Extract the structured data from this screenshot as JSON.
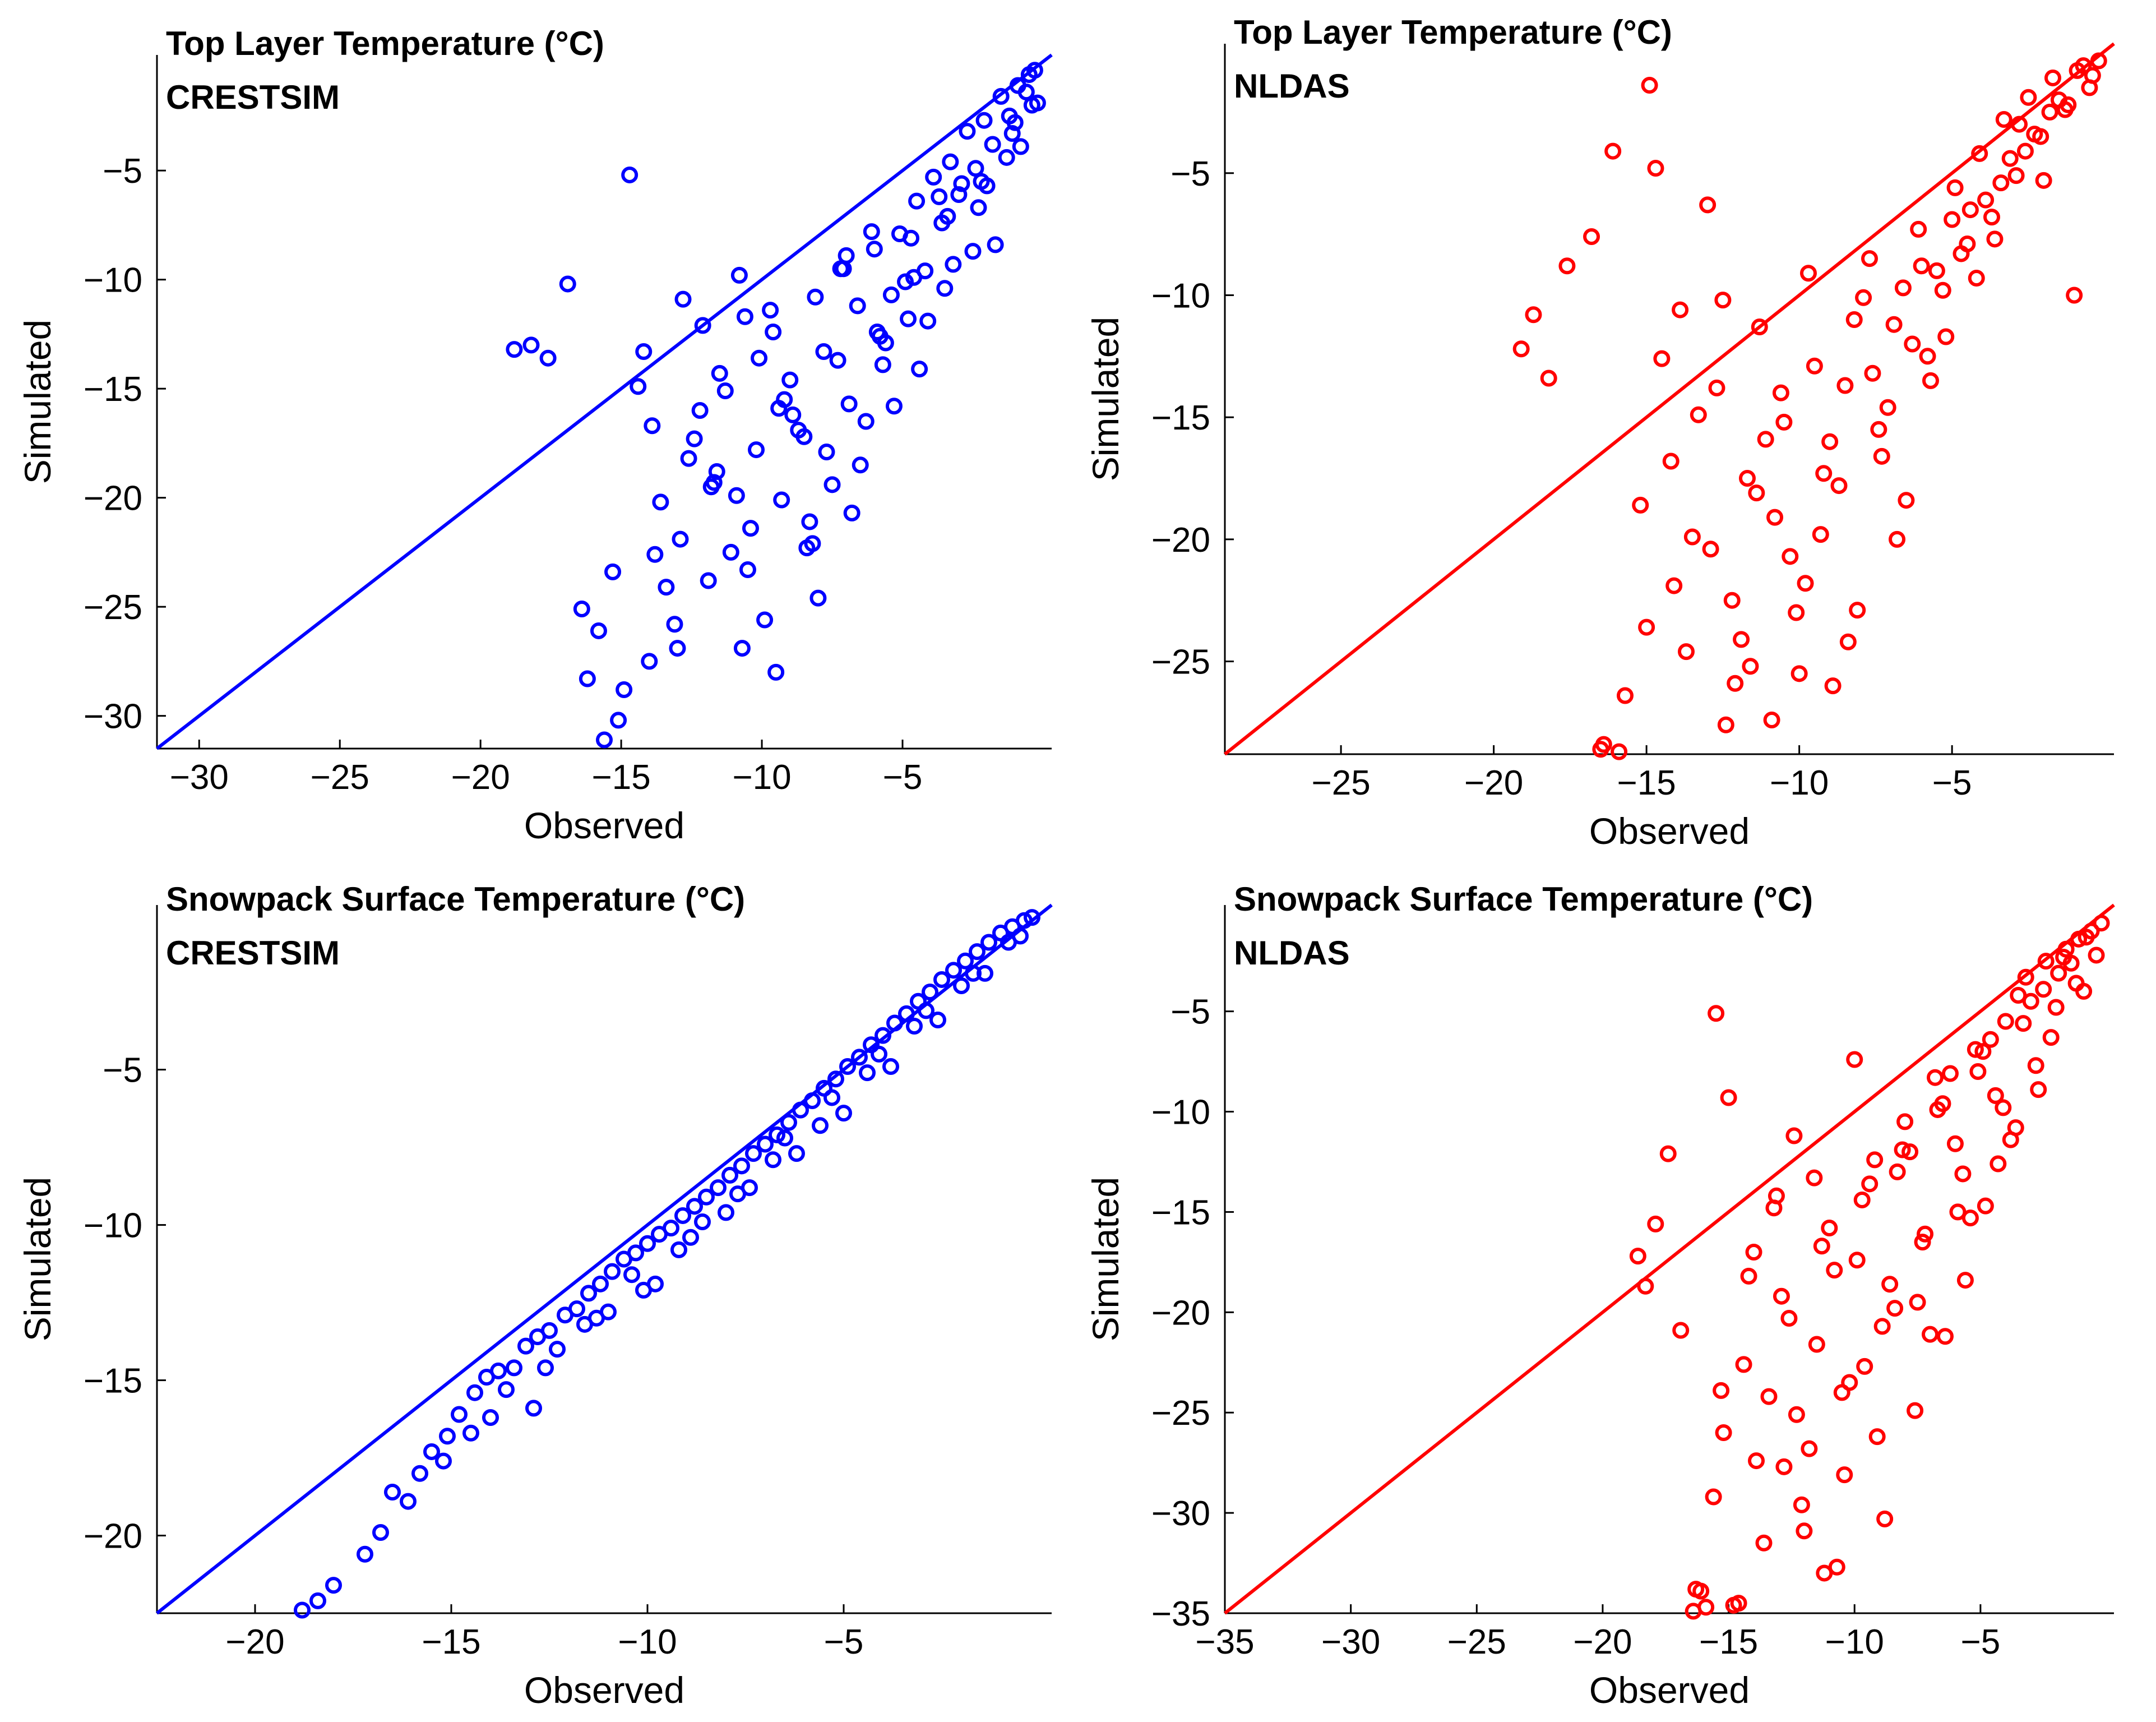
{
  "figure": {
    "background": "#ffffff",
    "marker": "circle"
  },
  "chart_data": [
    {
      "type": "scatter",
      "panel": "top-left",
      "title": "Top Layer Temperature (°C)",
      "subtitle": "CRESTSIM",
      "xlabel": "Observed",
      "ylabel": "Simulated",
      "color": "#0000ff",
      "xlim": [
        -31.5,
        0.3
      ],
      "ylim": [
        -31.5,
        0.3
      ],
      "xticks": [
        -30,
        -25,
        -20,
        -15,
        -10,
        -5
      ],
      "yticks": [
        -30,
        -25,
        -20,
        -15,
        -10,
        -5
      ],
      "reference_line": "1:1",
      "grid": false,
      "x": [
        -18.8,
        -18.2,
        -17.6,
        -16.9,
        -16.4,
        -15.8,
        -15.1,
        -14.7,
        -14.2,
        -13.8,
        -13.4,
        -13.0,
        -12.6,
        -12.2,
        -11.8,
        -11.5,
        -11.1,
        -10.8,
        -10.5,
        -10.2,
        -9.9,
        -9.6,
        -9.3,
        -9.0,
        -8.7,
        -8.4,
        -8.1,
        -7.8,
        -7.5,
        -7.2,
        -6.9,
        -6.6,
        -6.3,
        -6.0,
        -5.7,
        -5.4,
        -5.1,
        -4.8,
        -4.5,
        -4.2,
        -3.9,
        -3.6,
        -3.3,
        -3.0,
        -2.7,
        -2.4,
        -2.1,
        -1.8,
        -1.5,
        -1.2,
        -0.9,
        -0.6,
        -0.3,
        -16.2,
        -15.6,
        -14.9,
        -14.4,
        -13.6,
        -13.1,
        -12.4,
        -11.9,
        -11.3,
        -10.7,
        -10.1,
        -9.5,
        -8.9,
        -8.3,
        -7.7,
        -7.1,
        -6.5,
        -5.9,
        -5.3,
        -4.7,
        -4.1,
        -3.5,
        -2.9,
        -2.3,
        -1.7,
        -1.1,
        -0.5,
        -12.8,
        -11.6,
        -10.4,
        -9.2,
        -8.0,
        -6.8,
        -5.6,
        -4.4,
        -3.2,
        -2.0,
        -0.8,
        -13.9,
        -12.1,
        -10.9,
        -9.7,
        -8.5,
        -7.3,
        -6.1,
        -4.9,
        -3.7,
        -2.5,
        -1.3,
        -0.4,
        -15.3,
        -14.0,
        -12.9,
        -11.7,
        -10.6,
        -9.4,
        -8.2,
        -7.0,
        -5.8,
        -4.6,
        -3.4,
        -2.2,
        -1.0,
        -0.2
      ],
      "y": [
        -13.2,
        -13.0,
        -13.6,
        -10.2,
        -25.1,
        -26.1,
        -30.2,
        -5.2,
        -13.3,
        -22.6,
        -24.1,
        -26.9,
        -18.2,
        -16.0,
        -19.5,
        -14.3,
        -22.5,
        -9.8,
        -23.3,
        -17.8,
        -25.6,
        -12.4,
        -20.1,
        -14.6,
        -16.9,
        -22.3,
        -10.8,
        -13.3,
        -19.4,
        -9.5,
        -15.7,
        -11.2,
        -16.5,
        -8.6,
        -13.9,
        -10.7,
        -7.9,
        -11.8,
        -6.4,
        -9.6,
        -5.3,
        -7.4,
        -4.6,
        -6.1,
        -3.2,
        -4.9,
        -2.7,
        -3.8,
        -1.6,
        -2.5,
        -1.1,
        -1.4,
        -0.4,
        -28.3,
        -31.1,
        -28.8,
        -14.9,
        -20.2,
        -25.8,
        -17.3,
        -23.8,
        -15.1,
        -26.9,
        -13.6,
        -28.0,
        -16.2,
        -21.1,
        -17.9,
        -9.5,
        -18.5,
        -12.4,
        -15.8,
        -8.1,
        -11.9,
        -10.4,
        -5.6,
        -6.7,
        -8.4,
        -3.3,
        -0.6,
        -10.9,
        -18.8,
        -21.4,
        -15.5,
        -24.6,
        -20.7,
        -12.9,
        -14.1,
        -9.3,
        -5.7,
        -3.9,
        -16.7,
        -12.1,
        -19.9,
        -11.4,
        -17.2,
        -13.7,
        -7.8,
        -10.1,
        -6.2,
        -8.7,
        -4.4,
        -2.0,
        -23.4,
        -27.5,
        -21.9,
        -19.3,
        -11.7,
        -15.9,
        -22.1,
        -8.9,
        -12.6,
        -9.9,
        -7.1,
        -5.5,
        -2.8,
        -1.9
      ],
      "x_obs_note": "approximate"
    },
    {
      "type": "scatter",
      "panel": "top-right",
      "title": "Top Layer Temperature (°C)",
      "subtitle": "NLDAS",
      "xlabel": "Observed",
      "ylabel": "Simulated",
      "color": "#ff0000",
      "xlim": [
        -28.8,
        0.3
      ],
      "ylim": [
        -28.8,
        0.3
      ],
      "xticks": [
        -25,
        -20,
        -15,
        -10,
        -5
      ],
      "yticks": [
        -25,
        -20,
        -15,
        -10,
        -5
      ],
      "reference_line": "1:1",
      "grid": false,
      "x": [
        -19.1,
        -18.7,
        -18.2,
        -17.6,
        -16.8,
        -16.4,
        -16.1,
        -15.7,
        -15.2,
        -14.9,
        -14.5,
        -14.1,
        -13.7,
        -13.3,
        -12.9,
        -12.5,
        -12.1,
        -11.7,
        -11.3,
        -10.9,
        -10.5,
        -10.1,
        -9.7,
        -9.3,
        -8.9,
        -8.5,
        -8.1,
        -7.7,
        -7.3,
        -6.9,
        -6.5,
        -6.1,
        -5.7,
        -5.3,
        -4.9,
        -4.5,
        -4.1,
        -3.7,
        -3.3,
        -2.9,
        -2.5,
        -2.1,
        -1.7,
        -1.3,
        -0.9,
        -0.5,
        -0.2,
        -15.9,
        -15.0,
        -14.2,
        -13.5,
        -12.7,
        -11.9,
        -11.1,
        -10.3,
        -9.5,
        -8.7,
        -7.9,
        -7.1,
        -6.3,
        -5.5,
        -4.7,
        -3.9,
        -3.1,
        -2.3,
        -1.5,
        -0.7,
        -16.5,
        -13.0,
        -12.2,
        -11.4,
        -10.6,
        -9.8,
        -9.0,
        -8.2,
        -7.4,
        -6.6,
        -5.8,
        -5.0,
        -4.2,
        -3.4,
        -2.6,
        -1.8,
        -1.0,
        -0.4,
        -14.7,
        -13.9,
        -12.4,
        -11.6,
        -10.8,
        -10.0,
        -9.2,
        -8.4,
        -7.6,
        -6.8,
        -6.0,
        -5.2,
        -4.4,
        -3.6,
        -2.8,
        -2.0,
        -1.2
      ],
      "y": [
        -12.2,
        -10.8,
        -13.4,
        -8.8,
        -7.6,
        -28.4,
        -4.1,
        -26.4,
        -18.6,
        -1.4,
        -12.6,
        -21.9,
        -24.6,
        -14.9,
        -20.4,
        -10.2,
        -25.9,
        -17.5,
        -11.3,
        -27.4,
        -15.2,
        -23.0,
        -9.1,
        -19.8,
        -26.0,
        -13.7,
        -22.9,
        -8.5,
        -16.6,
        -11.2,
        -18.4,
        -7.3,
        -13.5,
        -9.8,
        -5.6,
        -7.9,
        -4.2,
        -6.8,
        -2.8,
        -5.1,
        -1.9,
        -3.5,
        -1.1,
        -2.4,
        -0.8,
        -1.5,
        -0.4,
        -28.7,
        -23.6,
        -16.8,
        -19.9,
        -13.8,
        -24.1,
        -15.9,
        -20.7,
        -12.9,
        -17.8,
        -10.1,
        -14.6,
        -12.0,
        -9.0,
        -8.3,
        -6.1,
        -4.4,
        -3.4,
        -2.0,
        -0.6,
        -28.6,
        -6.3,
        -22.5,
        -18.1,
        -14.0,
        -21.8,
        -16.0,
        -11.0,
        -15.5,
        -9.7,
        -12.5,
        -6.9,
        -9.3,
        -5.4,
        -4.1,
        -2.5,
        -10.0,
        -1.0,
        -4.8,
        -10.6,
        -27.6,
        -25.2,
        -19.1,
        -25.5,
        -17.3,
        -24.2,
        -13.2,
        -20.0,
        -8.8,
        -11.7,
        -6.5,
        -7.7,
        -3.0,
        -5.3,
        -2.2
      ]
    },
    {
      "type": "scatter",
      "panel": "bottom-left",
      "title": "Snowpack Surface Temperature (°C)",
      "subtitle": "CRESTSIM",
      "xlabel": "Observed",
      "ylabel": "Simulated",
      "color": "#0000ff",
      "xlim": [
        -22.5,
        0.3
      ],
      "ylim": [
        -22.5,
        0.3
      ],
      "xticks": [
        -20,
        -15,
        -10,
        -5
      ],
      "yticks": [
        -20,
        -15,
        -10,
        -5
      ],
      "reference_line": "1:1",
      "grid": false,
      "x": [
        -18.8,
        -18.4,
        -18.0,
        -17.2,
        -16.8,
        -16.5,
        -16.1,
        -15.8,
        -15.5,
        -15.1,
        -14.8,
        -14.4,
        -14.1,
        -13.8,
        -13.4,
        -13.1,
        -12.8,
        -12.5,
        -12.1,
        -11.8,
        -11.5,
        -11.2,
        -10.9,
        -10.6,
        -10.3,
        -10.0,
        -9.7,
        -9.4,
        -9.1,
        -8.8,
        -8.5,
        -8.2,
        -7.9,
        -7.6,
        -7.3,
        -7.0,
        -6.7,
        -6.4,
        -6.1,
        -5.8,
        -5.5,
        -5.2,
        -4.9,
        -4.6,
        -4.3,
        -4.0,
        -3.7,
        -3.4,
        -3.1,
        -2.8,
        -2.5,
        -2.2,
        -1.9,
        -1.6,
        -1.3,
        -1.0,
        -0.7,
        -0.4,
        -0.2,
        -14.5,
        -13.6,
        -12.9,
        -12.3,
        -11.6,
        -11.0,
        -10.4,
        -9.8,
        -9.2,
        -8.6,
        -8.0,
        -7.4,
        -6.8,
        -6.2,
        -5.6,
        -5.0,
        -4.4,
        -3.8,
        -3.2,
        -2.6,
        -2.0,
        -1.4,
        -0.8,
        -15.2,
        -14.0,
        -12.6,
        -11.3,
        -10.1,
        -8.9,
        -7.7,
        -6.5,
        -5.3,
        -4.1,
        -2.9,
        -1.7,
        -0.5
      ],
      "y": [
        -22.4,
        -22.1,
        -21.6,
        -20.6,
        -19.9,
        -18.6,
        -18.9,
        -18.0,
        -17.3,
        -16.8,
        -16.1,
        -15.4,
        -14.9,
        -14.7,
        -14.6,
        -13.9,
        -13.6,
        -13.4,
        -12.9,
        -12.7,
        -12.2,
        -11.9,
        -11.5,
        -11.1,
        -10.9,
        -10.6,
        -10.3,
        -10.1,
        -9.7,
        -9.4,
        -9.1,
        -8.8,
        -8.4,
        -8.1,
        -7.7,
        -7.4,
        -7.1,
        -6.7,
        -6.3,
        -6.0,
        -5.6,
        -5.3,
        -4.9,
        -4.6,
        -4.2,
        -3.9,
        -3.5,
        -3.2,
        -2.8,
        -2.5,
        -2.1,
        -1.8,
        -1.5,
        -1.2,
        -0.9,
        -0.6,
        -0.4,
        -0.2,
        -0.1,
        -16.7,
        -15.3,
        -15.9,
        -14.0,
        -13.2,
        -12.8,
        -11.6,
        -11.9,
        -10.8,
        -9.9,
        -9.6,
        -8.8,
        -7.9,
        -7.7,
        -6.8,
        -6.4,
        -5.1,
        -4.9,
        -3.6,
        -3.4,
        -2.3,
        -1.9,
        -0.9,
        -17.6,
        -16.2,
        -14.6,
        -13.0,
        -12.1,
        -10.4,
        -9.0,
        -7.2,
        -5.9,
        -4.5,
        -3.1,
        -1.9,
        -0.7
      ]
    },
    {
      "type": "scatter",
      "panel": "bottom-right",
      "title": "Snowpack Surface Temperature (°C)",
      "subtitle": "NLDAS",
      "xlabel": "Observed",
      "ylabel": "Simulated",
      "color": "#ff0000",
      "xlim": [
        -35,
        0.3
      ],
      "ylim": [
        -35,
        0.3
      ],
      "xticks": [
        -35,
        -30,
        -25,
        -20,
        -15,
        -10,
        -5
      ],
      "yticks": [
        -35,
        -30,
        -25,
        -20,
        -15,
        -10,
        -5
      ],
      "reference_line": "1:1",
      "grid": false,
      "x": [
        -18.6,
        -18.3,
        -17.9,
        -17.4,
        -16.9,
        -16.3,
        -15.9,
        -15.5,
        -15.2,
        -14.8,
        -14.4,
        -14.0,
        -13.6,
        -13.2,
        -12.8,
        -12.4,
        -12.0,
        -11.6,
        -11.2,
        -10.8,
        -10.4,
        -10.0,
        -9.6,
        -9.2,
        -8.8,
        -8.4,
        -8.0,
        -7.6,
        -7.2,
        -6.8,
        -6.4,
        -6.0,
        -5.6,
        -5.2,
        -4.8,
        -4.4,
        -4.0,
        -3.6,
        -3.2,
        -2.8,
        -2.4,
        -2.0,
        -1.6,
        -1.2,
        -0.8,
        -0.4,
        -0.2,
        -16.1,
        -15.6,
        -15.0,
        -14.6,
        -13.4,
        -12.6,
        -11.8,
        -11.0,
        -10.2,
        -9.4,
        -8.6,
        -7.8,
        -7.0,
        -6.2,
        -5.4,
        -4.6,
        -3.8,
        -3.0,
        -2.2,
        -1.4,
        -0.6,
        -16.4,
        -15.3,
        -13.9,
        -12.9,
        -12.1,
        -11.3,
        -10.5,
        -9.7,
        -8.9,
        -8.1,
        -7.3,
        -6.5,
        -5.7,
        -4.9,
        -4.1,
        -3.3,
        -2.5,
        -1.7,
        -0.9,
        -14.2,
        -13.1,
        -12.3,
        -11.5,
        -10.7,
        -9.9,
        -9.1,
        -8.3,
        -7.5,
        -6.7,
        -5.9,
        -5.1,
        -4.3,
        -3.5,
        -2.7,
        -1.9,
        -1.1
      ],
      "y": [
        -17.2,
        -18.7,
        -15.6,
        -12.1,
        -20.9,
        -33.8,
        -34.7,
        -5.1,
        -26.0,
        -34.6,
        -22.6,
        -17.0,
        -31.5,
        -14.8,
        -27.7,
        -11.2,
        -30.9,
        -13.3,
        -33.0,
        -17.9,
        -28.1,
        -7.4,
        -22.7,
        -12.4,
        -30.3,
        -19.8,
        -10.5,
        -24.9,
        -16.1,
        -8.3,
        -21.2,
        -11.6,
        -18.4,
        -6.9,
        -14.7,
        -9.2,
        -5.5,
        -10.8,
        -3.3,
        -7.7,
        -2.5,
        -4.8,
        -1.9,
        -3.6,
        -1.3,
        -2.2,
        -0.6,
        -33.9,
        -29.2,
        -9.3,
        -34.5,
        -24.2,
        -20.3,
        -26.8,
        -15.8,
        -23.5,
        -13.6,
        -18.6,
        -12.0,
        -21.1,
        -8.1,
        -15.3,
        -6.4,
        -11.4,
        -4.5,
        -6.3,
        -2.6,
        -1.0,
        -34.9,
        -23.9,
        -27.4,
        -19.2,
        -29.6,
        -16.7,
        -24.0,
        -14.4,
        -20.7,
        -11.9,
        -16.5,
        -9.6,
        -13.1,
        -7.0,
        -9.8,
        -5.6,
        -3.9,
        -2.3,
        -4.0,
        -18.2,
        -14.2,
        -25.1,
        -21.6,
        -32.7,
        -17.4,
        -26.2,
        -13.0,
        -19.5,
        -9.9,
        -15.0,
        -8.0,
        -12.6,
        -4.2,
        -8.9,
        -3.1,
        -1.4
      ]
    }
  ]
}
